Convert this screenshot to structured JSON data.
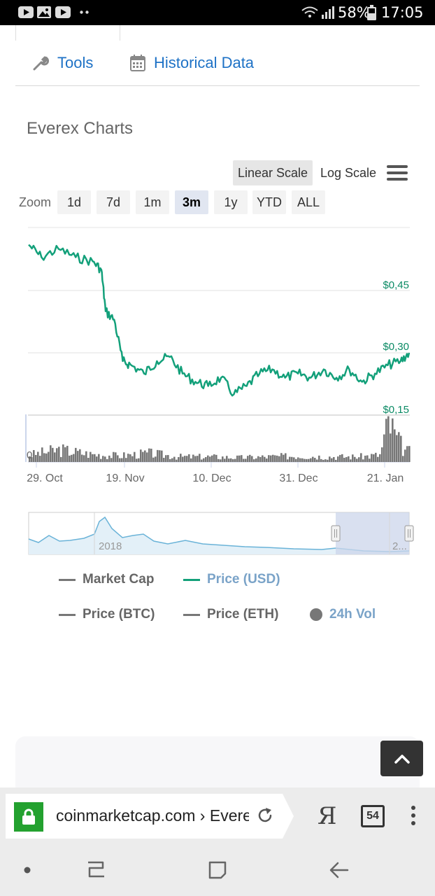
{
  "status_bar": {
    "battery_percent": "58%",
    "time": "17:05"
  },
  "tools": {
    "tools_label": "Tools",
    "historical_label": "Historical Data"
  },
  "charts_title": "Everex Charts",
  "scale": {
    "linear_label": "Linear Scale",
    "log_label": "Log Scale",
    "active": "linear"
  },
  "zoom": {
    "label": "Zoom",
    "buttons": [
      "1d",
      "7d",
      "1m",
      "3m",
      "1y",
      "YTD",
      "ALL"
    ],
    "active": "3m"
  },
  "colors": {
    "price_line": "#13a07a",
    "price_label": "#0a8a64",
    "volume_bars": "#777777",
    "navigator_line": "#6ab3d8",
    "navigator_fill": "#e3f0f8",
    "selection": "#ccd6eb",
    "link_blue": "#1e72c6",
    "legend_active": "#7aa3c8"
  },
  "chart_data": {
    "type": "line",
    "x_tick_labels": [
      "29. Oct",
      "19. Nov",
      "10. Dec",
      "31. Dec",
      "21. Jan"
    ],
    "y_tick_labels": [
      "$0,45",
      "$0,30",
      "$0,15"
    ],
    "y_range": [
      0.15,
      0.57
    ],
    "volume_axis_label": "0",
    "series": [
      {
        "name": "Price (USD)",
        "x": [
          "2017-10-29",
          "2017-11-01",
          "2017-11-05",
          "2017-11-09",
          "2017-11-13",
          "2017-11-15",
          "2017-11-16",
          "2017-11-18",
          "2017-11-20",
          "2017-11-22",
          "2017-11-25",
          "2017-11-28",
          "2017-12-01",
          "2017-12-04",
          "2017-12-07",
          "2017-12-10",
          "2017-12-13",
          "2017-12-16",
          "2017-12-19",
          "2017-12-22",
          "2017-12-25",
          "2017-12-28",
          "2017-12-31",
          "2018-01-03",
          "2018-01-06",
          "2018-01-09",
          "2018-01-12",
          "2018-01-15",
          "2018-01-18",
          "2018-01-21",
          "2018-01-24",
          "2018-01-26"
        ],
        "y": [
          0.56,
          0.53,
          0.55,
          0.53,
          0.52,
          0.5,
          0.4,
          0.38,
          0.28,
          0.27,
          0.25,
          0.28,
          0.29,
          0.25,
          0.23,
          0.22,
          0.24,
          0.2,
          0.22,
          0.25,
          0.26,
          0.24,
          0.25,
          0.24,
          0.26,
          0.24,
          0.26,
          0.23,
          0.25,
          0.27,
          0.28,
          0.3
        ]
      },
      {
        "name": "24h Vol",
        "x": [
          "2017-10-29",
          "2017-11-05",
          "2017-11-12",
          "2017-11-19",
          "2017-11-26",
          "2017-12-03",
          "2017-12-10",
          "2017-12-17",
          "2017-12-24",
          "2017-12-31",
          "2018-01-07",
          "2018-01-14",
          "2018-01-19",
          "2018-01-21",
          "2018-01-23",
          "2018-01-25"
        ],
        "y": [
          8,
          14,
          9,
          7,
          10,
          6,
          6,
          5,
          6,
          7,
          6,
          6,
          8,
          45,
          25,
          12
        ]
      }
    ],
    "navigator_label": "2018",
    "navigator_label_right": "2..."
  },
  "legend": [
    {
      "label": "Market Cap",
      "marker": "line",
      "active": false
    },
    {
      "label": "Price (USD)",
      "marker": "line",
      "active": true
    },
    {
      "label": "Price (BTC)",
      "marker": "line",
      "active": false
    },
    {
      "label": "Price (ETH)",
      "marker": "line",
      "active": false
    },
    {
      "label": "24h Vol",
      "marker": "dot",
      "active": true
    }
  ],
  "browser": {
    "url": "coinmarketcap.com › Everex",
    "tab_count": "54",
    "yandex_glyph": "Я"
  }
}
